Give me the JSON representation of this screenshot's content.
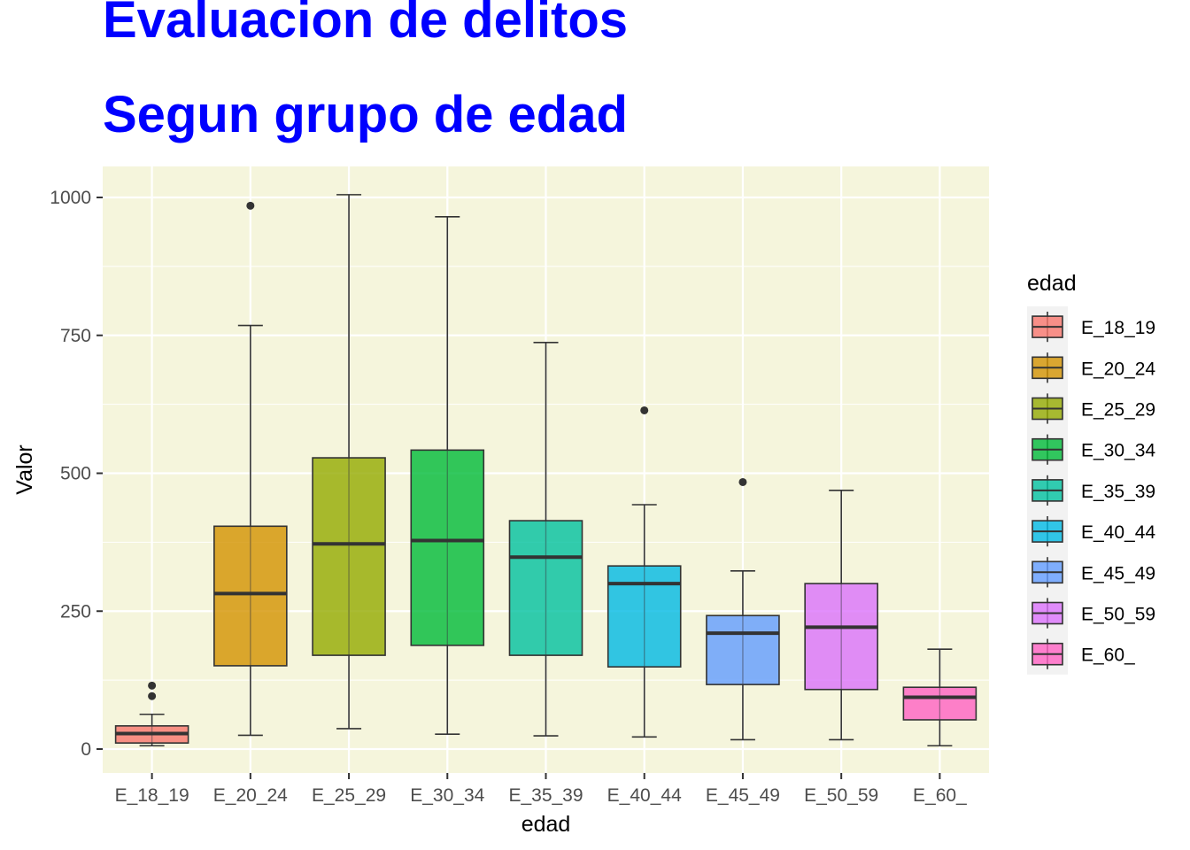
{
  "chart_data": {
    "type": "box",
    "title": "Evaluacion de delitos",
    "subtitle": "Segun grupo de edad",
    "xlabel": "edad",
    "ylabel": "Valor",
    "ylim": [
      -45,
      1055
    ],
    "yticks": [
      0,
      250,
      500,
      750,
      1000
    ],
    "grid": true,
    "panel_background": "#f5f5dc",
    "legend": {
      "title": "edad",
      "position": "right"
    },
    "categories": [
      "E_18_19",
      "E_20_24",
      "E_25_29",
      "E_30_34",
      "E_35_39",
      "E_40_44",
      "E_45_49",
      "E_50_59",
      "E_60_"
    ],
    "colors": [
      "#f8766d",
      "#d39200",
      "#93aa00",
      "#00ba38",
      "#00c19f",
      "#00b9e3",
      "#619cff",
      "#db72fb",
      "#ff61c3"
    ],
    "boxes": [
      {
        "category": "E_18_19",
        "min": 6,
        "q1": 11,
        "median": 28,
        "q3": 42,
        "max": 63,
        "outliers": [
          96,
          115
        ]
      },
      {
        "category": "E_20_24",
        "min": 25,
        "q1": 151,
        "median": 282,
        "q3": 404,
        "max": 768,
        "outliers": [
          985
        ]
      },
      {
        "category": "E_25_29",
        "min": 37,
        "q1": 170,
        "median": 372,
        "q3": 528,
        "max": 1005,
        "outliers": []
      },
      {
        "category": "E_30_34",
        "min": 27,
        "q1": 188,
        "median": 378,
        "q3": 542,
        "max": 965,
        "outliers": []
      },
      {
        "category": "E_35_39",
        "min": 24,
        "q1": 170,
        "median": 348,
        "q3": 414,
        "max": 737,
        "outliers": []
      },
      {
        "category": "E_40_44",
        "min": 22,
        "q1": 149,
        "median": 300,
        "q3": 332,
        "max": 443,
        "outliers": [
          614
        ]
      },
      {
        "category": "E_45_49",
        "min": 17,
        "q1": 117,
        "median": 210,
        "q3": 242,
        "max": 323,
        "outliers": [
          484
        ]
      },
      {
        "category": "E_50_59",
        "min": 17,
        "q1": 108,
        "median": 221,
        "q3": 300,
        "max": 469,
        "outliers": []
      },
      {
        "category": "E_60_",
        "min": 6,
        "q1": 53,
        "median": 94,
        "q3": 112,
        "max": 181,
        "outliers": []
      }
    ]
  }
}
